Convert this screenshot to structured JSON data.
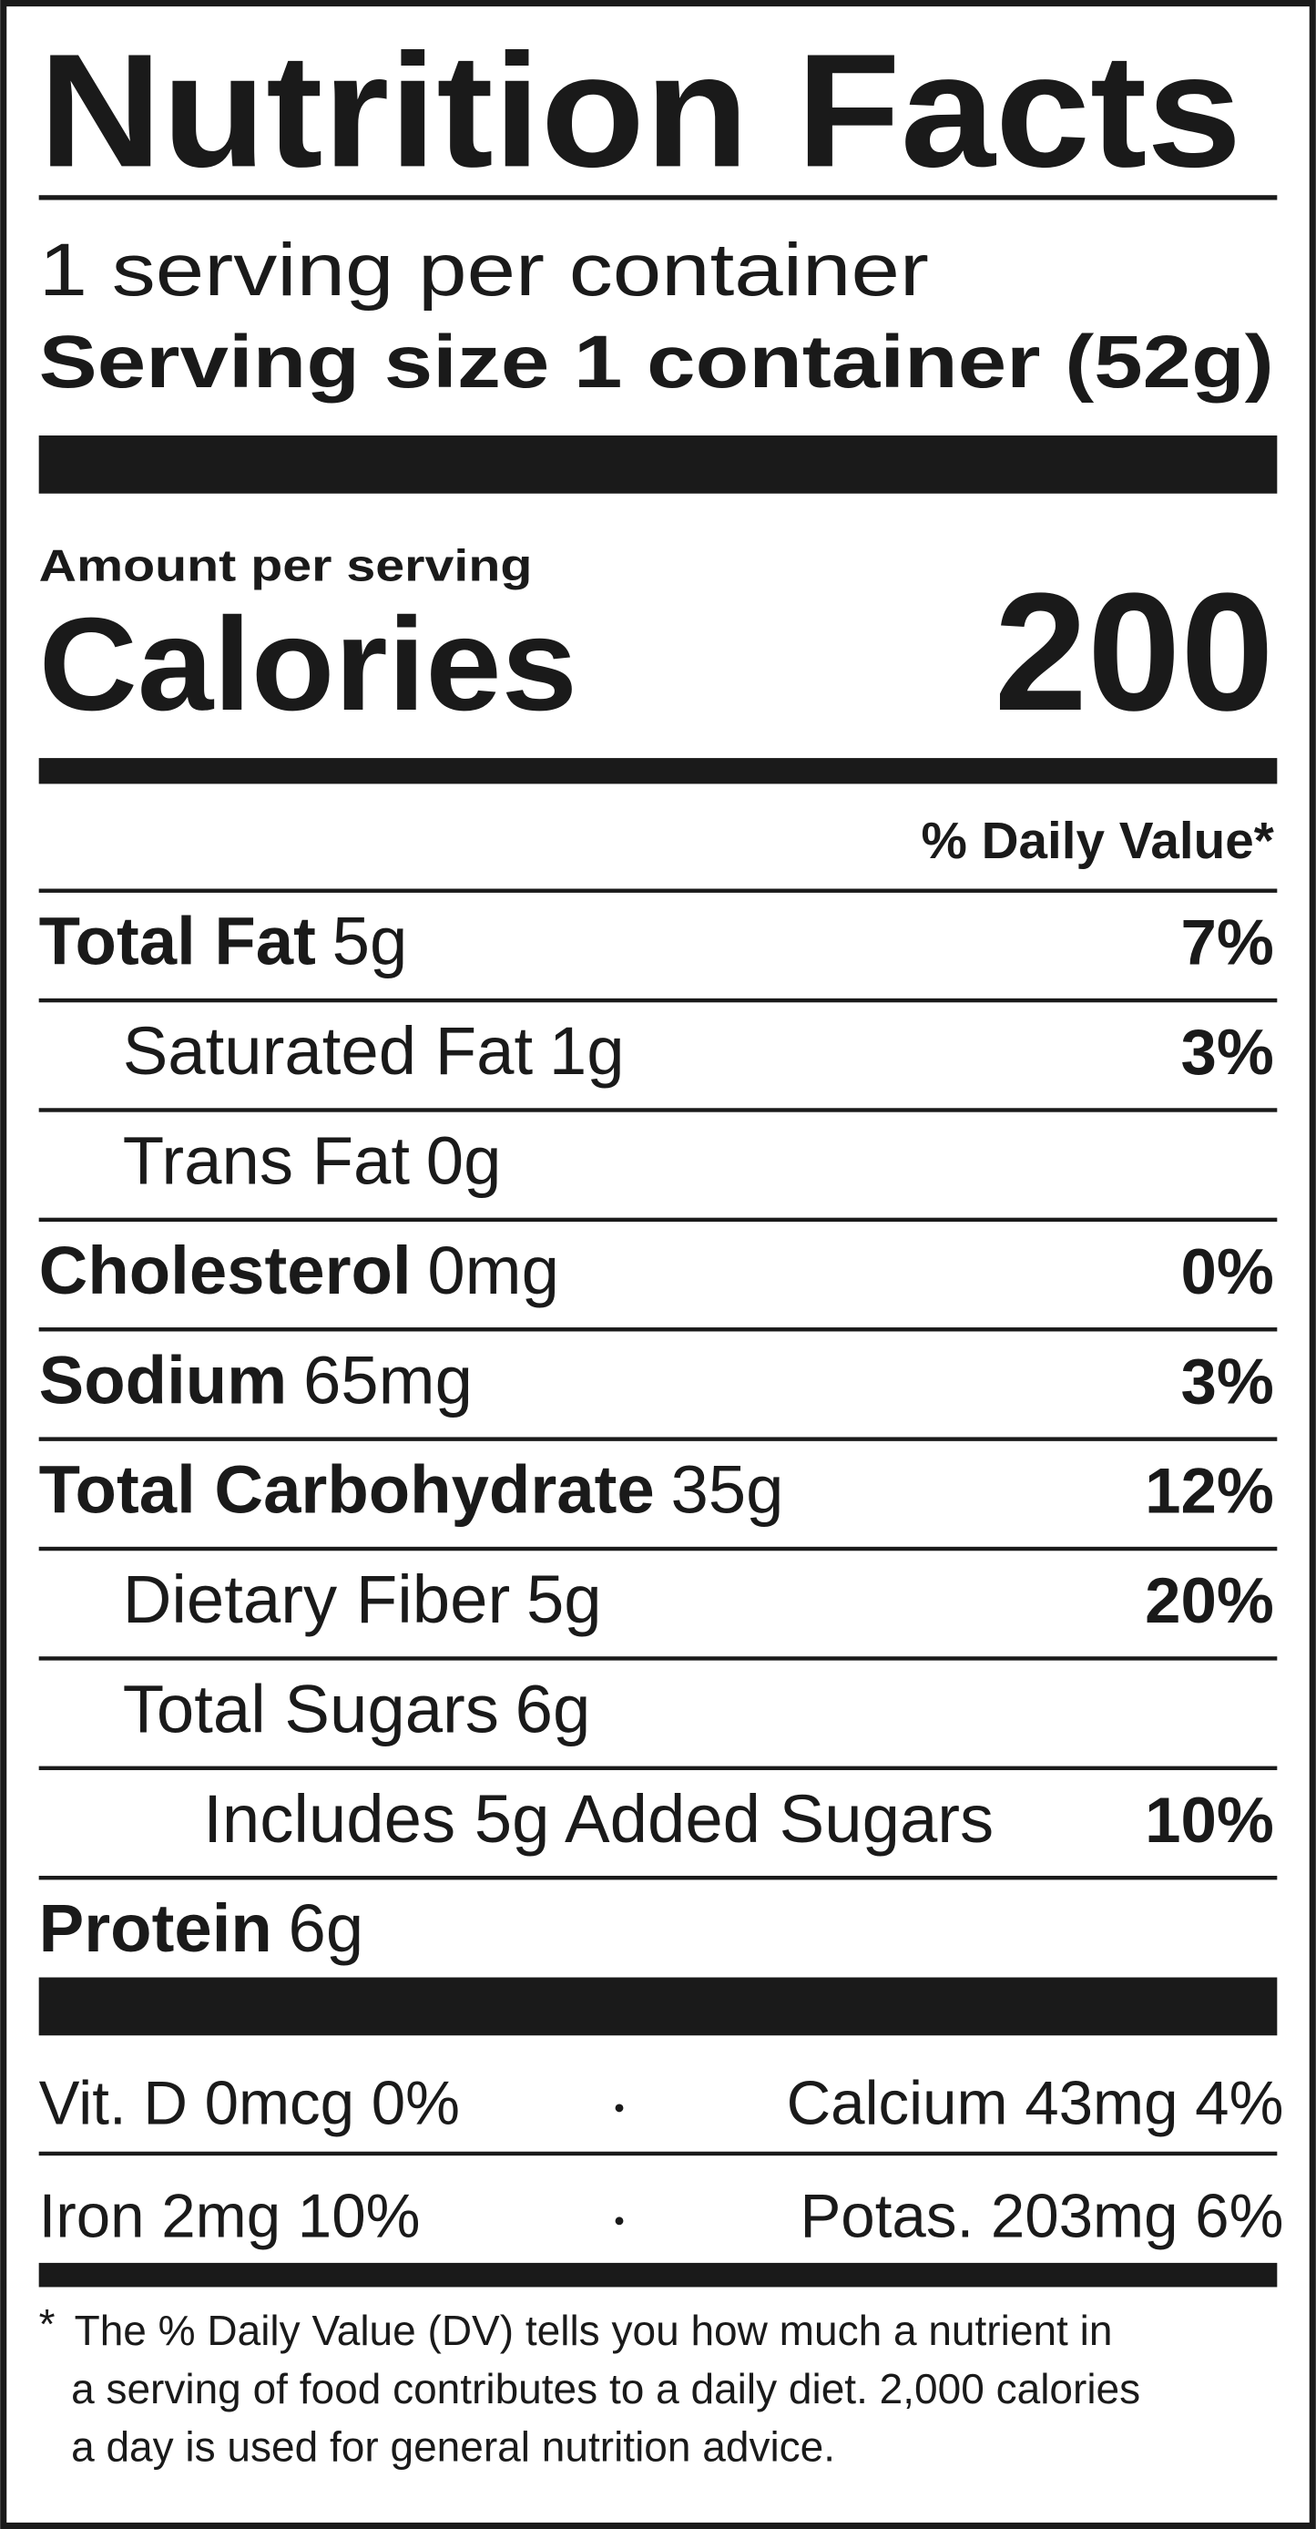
{
  "title": "Nutrition Facts",
  "servings": "1 serving per container",
  "serving_size": "Serving size 1 container (52g)",
  "amount_per_serving": "Amount per serving",
  "calories": {
    "label": "Calories",
    "value": 200
  },
  "daily_value_header": "% Daily Value*",
  "nutrients": [
    {
      "name": "Total Fat",
      "amount": "5g",
      "dv": "7%",
      "bold": true,
      "indent": 0
    },
    {
      "name": "Saturated Fat",
      "amount": "1g",
      "dv": "3%",
      "bold": false,
      "indent": 1
    },
    {
      "name": "Trans Fat",
      "amount": "0g",
      "dv": null,
      "bold": false,
      "indent": 1
    },
    {
      "name": "Cholesterol",
      "amount": "0mg",
      "dv": "0%",
      "bold": true,
      "indent": 0
    },
    {
      "name": "Sodium",
      "amount": "65mg",
      "dv": "3%",
      "bold": true,
      "indent": 0
    },
    {
      "name": "Total Carbohydrate",
      "amount": "35g",
      "dv": "12%",
      "bold": true,
      "indent": 0
    },
    {
      "name": "Dietary Fiber",
      "amount": "5g",
      "dv": "20%",
      "bold": false,
      "indent": 1
    },
    {
      "name": "Total Sugars",
      "amount": "6g",
      "dv": null,
      "bold": false,
      "indent": 1
    },
    {
      "name": "Includes 5g Added Sugars",
      "amount": null,
      "dv": "10%",
      "bold": false,
      "indent": 2
    },
    {
      "name": "Protein",
      "amount": "6g",
      "dv": null,
      "bold": true,
      "indent": 0
    }
  ],
  "vitamins": [
    [
      "Vit. D 0mcg 0%",
      "Calcium 43mg 4%"
    ],
    [
      "Iron 2mg 10%",
      "Potas. 203mg 6%"
    ]
  ],
  "footnote_mark": "*",
  "footnote": [
    "The % Daily Value (DV) tells you how much a nutrient in",
    "a serving of food contributes to a daily diet. 2,000 calories",
    "a day is used for general nutrition advice."
  ]
}
